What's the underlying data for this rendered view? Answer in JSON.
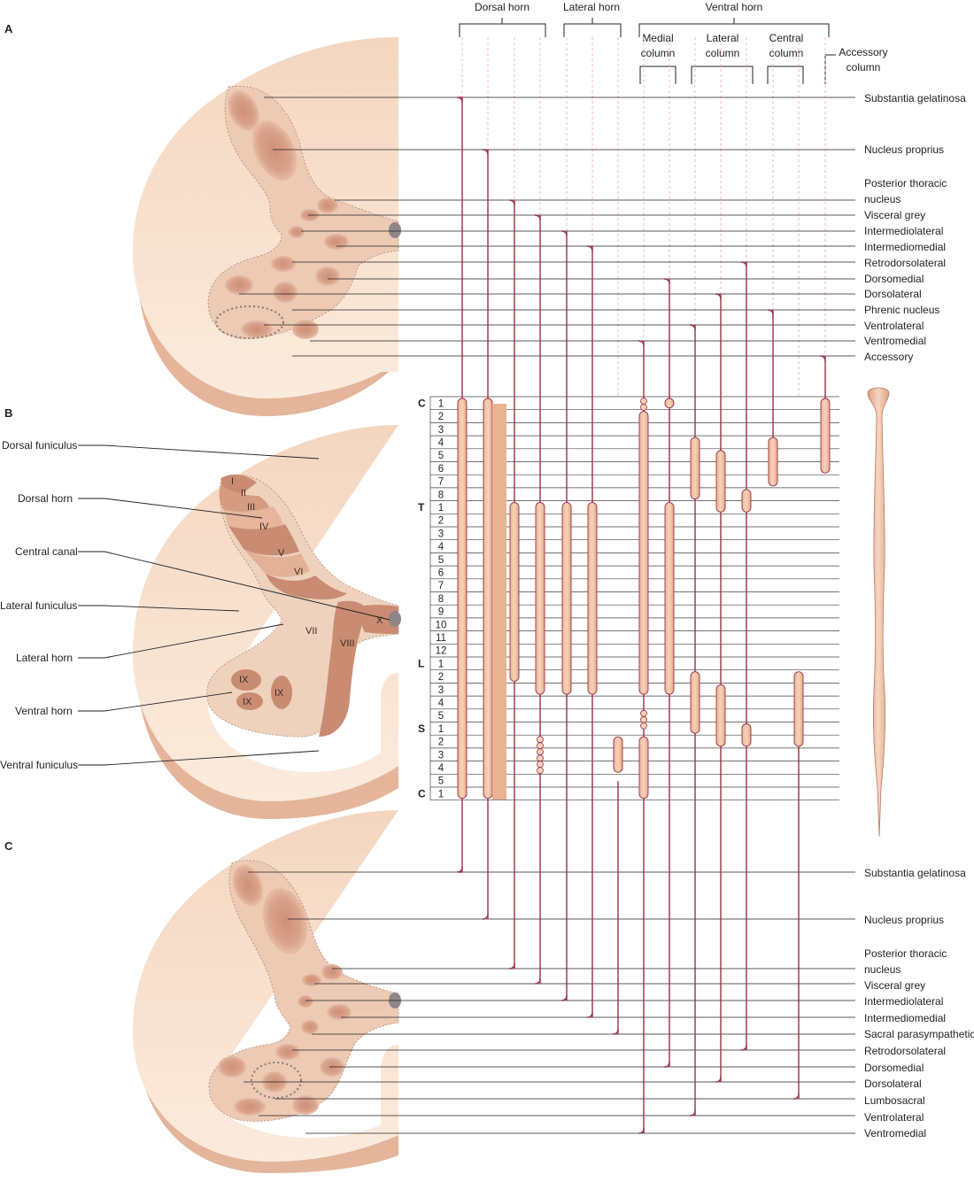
{
  "panels": {
    "a": "A",
    "b": "B",
    "c": "C"
  },
  "headers": {
    "dorsal_horn": "Dorsal horn",
    "lateral_horn": "Lateral horn",
    "ventral_horn": "Ventral horn",
    "medial_column": [
      "Medial",
      "column"
    ],
    "lateral_column": [
      "Lateral",
      "column"
    ],
    "central_column": [
      "Central",
      "column"
    ],
    "accessory_column": [
      "Accessory",
      "column"
    ]
  },
  "labels_a": [
    "Substantia gelatinosa",
    "Nucleus proprius",
    "Posterior thoracic",
    "nucleus",
    "Visceral grey",
    "Intermediolateral",
    "Intermediomedial",
    "Retrodorsolateral",
    "Dorsomedial",
    "Dorsolateral",
    "Phrenic nucleus",
    "Ventrolateral",
    "Ventromedial",
    "Accessory"
  ],
  "labels_c": [
    "Substantia gelatinosa",
    "Nucleus proprius",
    "Posterior thoracic",
    "nucleus",
    "Visceral grey",
    "Intermediolateral",
    "Intermediomedial",
    "Sacral parasympathetic",
    "Retrodorsolateral",
    "Dorsomedial",
    "Dorsolateral",
    "Lumbosacral",
    "Ventrolateral",
    "Ventromedial"
  ],
  "labels_b": [
    "Dorsal funiculus",
    "Dorsal horn",
    "Central canal",
    "Lateral funiculus",
    "Lateral horn",
    "Ventral horn",
    "Ventral funiculus"
  ],
  "laminae": [
    "I",
    "II",
    "III",
    "IV",
    "V",
    "VI",
    "VII",
    "VIII",
    "IX",
    "IX",
    "IX",
    "X"
  ],
  "segment_groups": [
    {
      "letter": "C",
      "numbers": [
        "1",
        "2",
        "3",
        "4",
        "5",
        "6",
        "7",
        "8"
      ]
    },
    {
      "letter": "T",
      "numbers": [
        "1",
        "2",
        "3",
        "4",
        "5",
        "6",
        "7",
        "8",
        "9",
        "10",
        "11",
        "12"
      ]
    },
    {
      "letter": "L",
      "numbers": [
        "1",
        "2",
        "3",
        "4",
        "5"
      ]
    },
    {
      "letter": "S",
      "numbers": [
        "1",
        "2",
        "3",
        "4",
        "5"
      ]
    },
    {
      "letter": "C",
      "numbers": [
        "1"
      ]
    }
  ],
  "colors": {
    "tissue": "#f6dcc6",
    "grey_matter": "#eec9b0",
    "nucleus": "#d69a82",
    "lamina_dark": "#c98c72",
    "column": "#f1c8aa",
    "line": "#9c2f45",
    "leader": "#222222"
  }
}
